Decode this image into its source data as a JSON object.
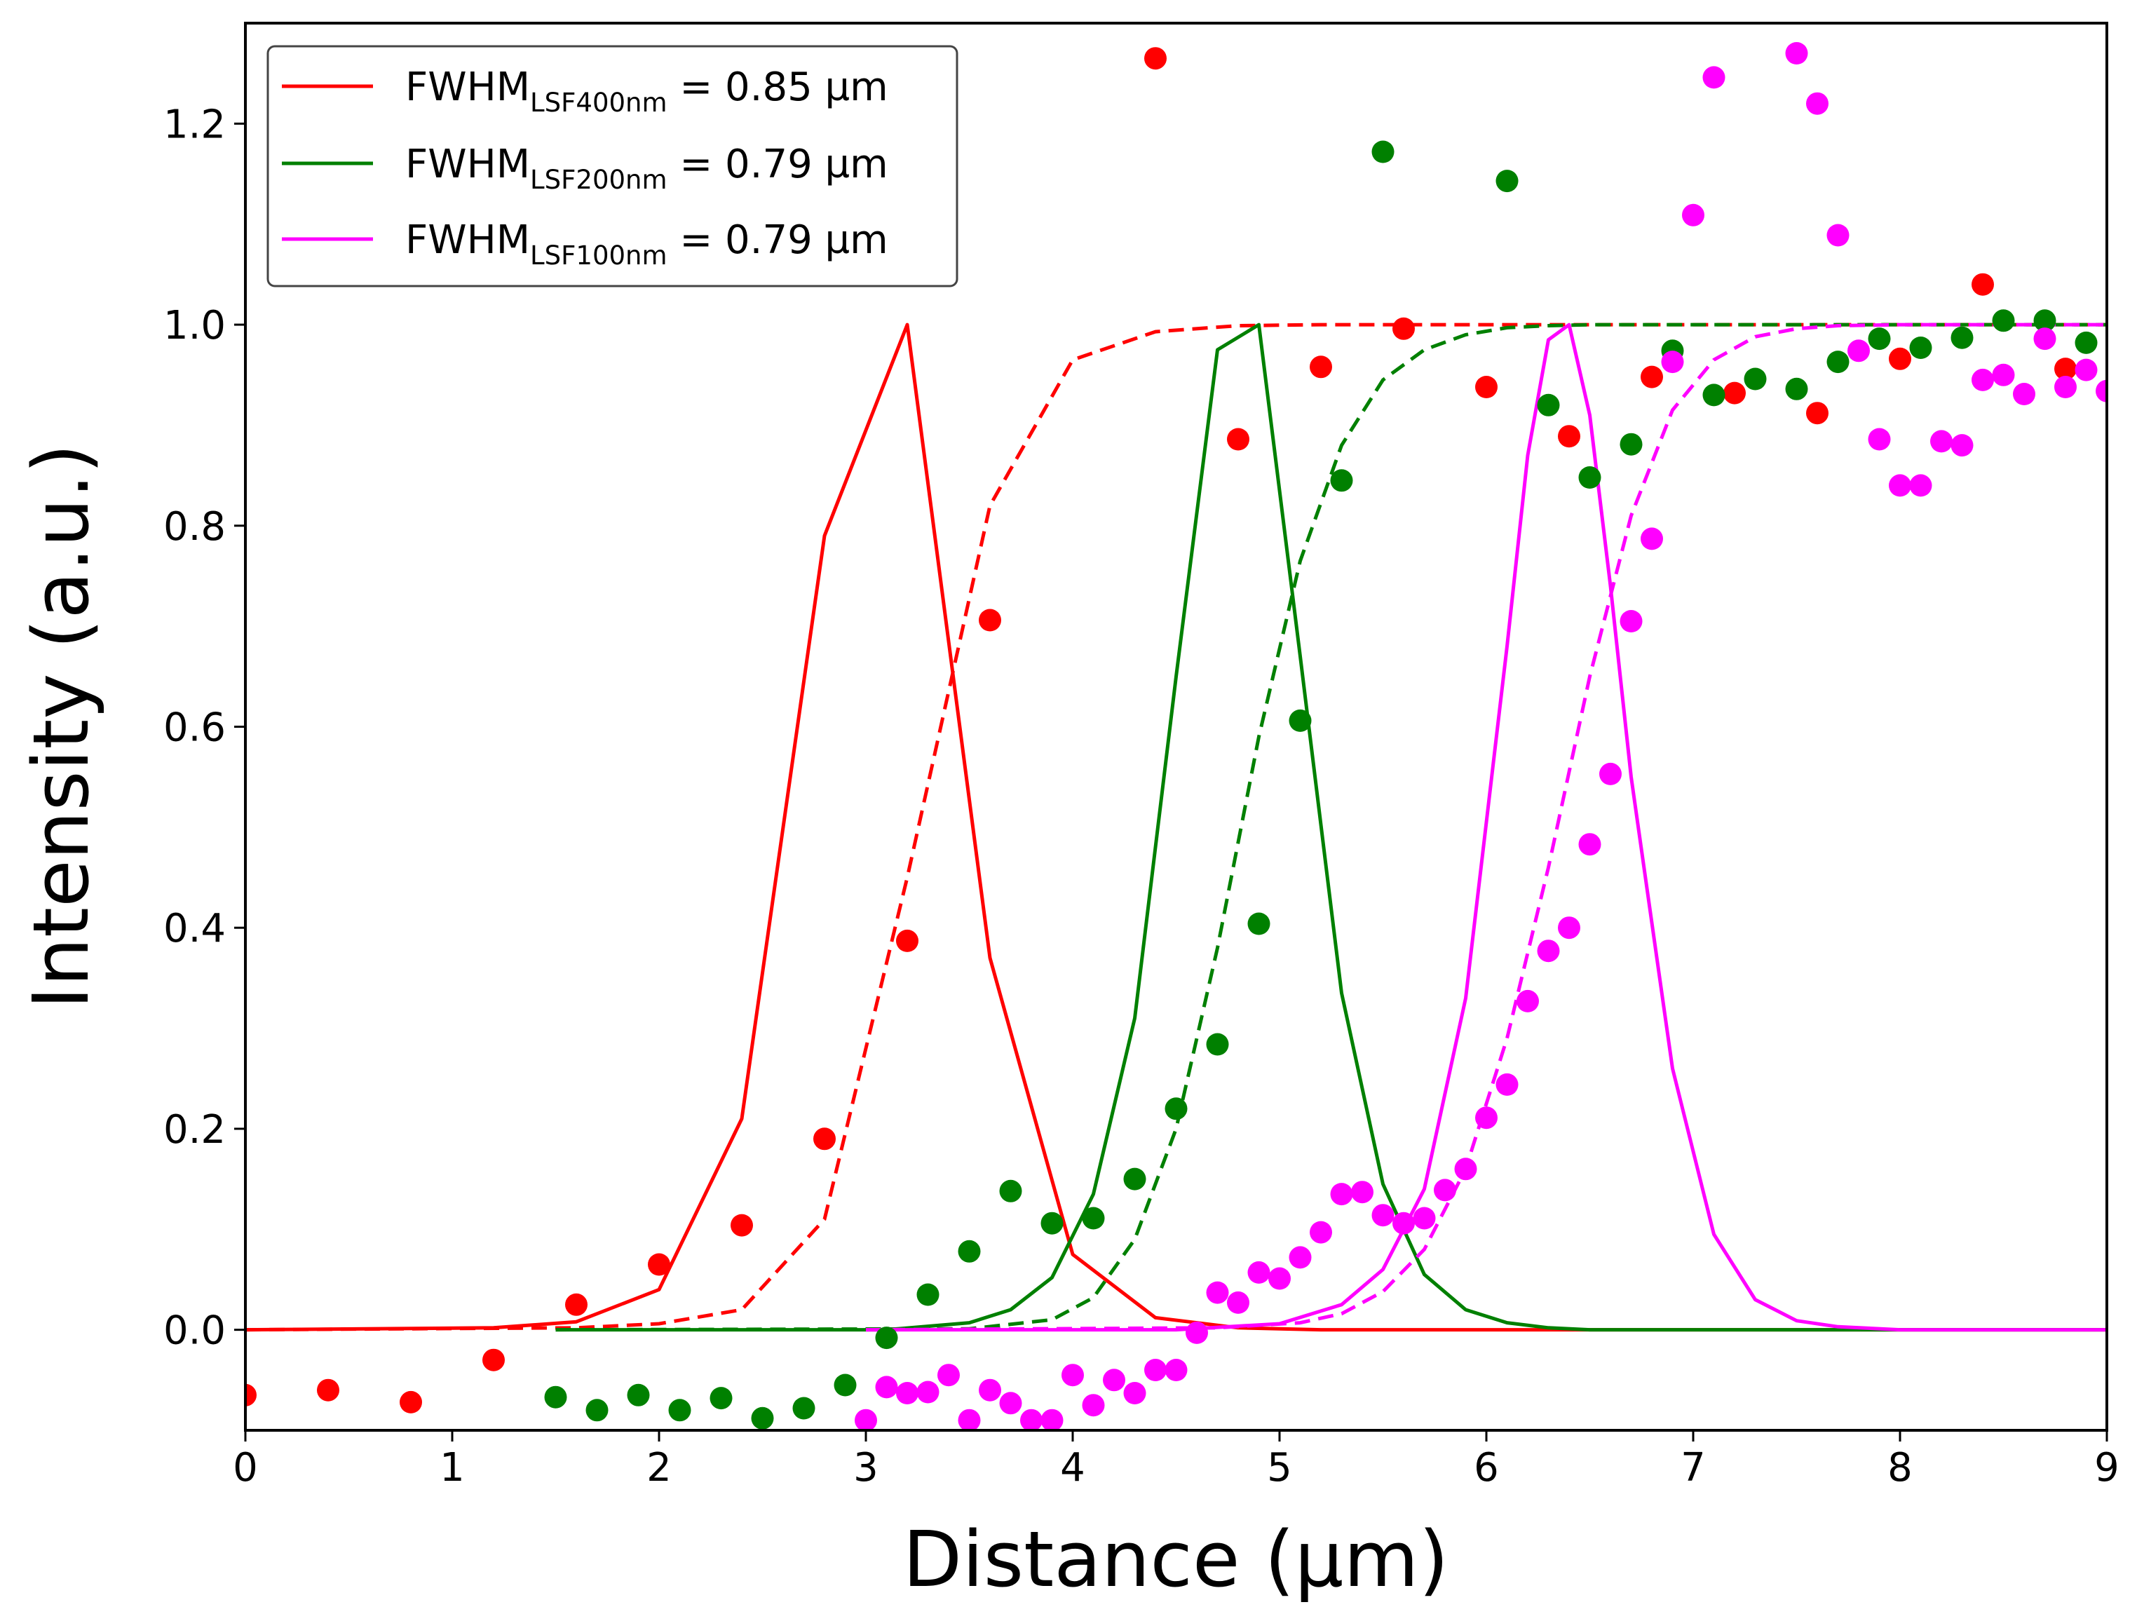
{
  "chart_data": {
    "type": "line",
    "title": "",
    "xlabel": "Distance (µm)",
    "ylabel": "Intensity (a.u.)",
    "xlim": [
      0,
      9
    ],
    "ylim": [
      -0.1,
      1.3
    ],
    "xticks": [
      0,
      1,
      2,
      3,
      4,
      5,
      6,
      7,
      8,
      9
    ],
    "yticks": [
      0.0,
      0.2,
      0.4,
      0.6,
      0.8,
      1.0,
      1.2
    ],
    "ytick_labels": [
      "0.0",
      "0.2",
      "0.4",
      "0.6",
      "0.8",
      "1.0",
      "1.2"
    ],
    "grid": false,
    "legend_position": "top-left",
    "legend": [
      {
        "main": "FWHM",
        "sub": "LSF400nm",
        "rest": " = 0.85 µm",
        "color": "#ff0000"
      },
      {
        "main": "FWHM",
        "sub": "LSF200nm",
        "rest": " = 0.79 µm",
        "color": "#008000"
      },
      {
        "main": "FWHM",
        "sub": "LSF100nm",
        "rest": " = 0.79 µm",
        "color": "#ff00ff"
      }
    ],
    "series": [
      {
        "name": "400nm",
        "color": "#ff0000",
        "lsf": {
          "x": [
            0,
            1.2,
            1.6,
            2.0,
            2.4,
            2.8,
            3.2,
            3.6,
            4.0,
            4.4,
            4.8,
            5.2,
            5.6,
            6.0,
            6.4,
            6.8,
            7.2,
            7.6,
            8.0,
            8.4,
            8.8,
            9.0
          ],
          "y": [
            0,
            0.002,
            0.008,
            0.04,
            0.21,
            0.79,
            1.0,
            0.37,
            0.075,
            0.012,
            0.002,
            0,
            0,
            0,
            0,
            0,
            0,
            0,
            0,
            0,
            0,
            0
          ]
        },
        "esf": {
          "x": [
            0,
            1.6,
            2.0,
            2.4,
            2.8,
            3.2,
            3.6,
            4.0,
            4.4,
            4.8,
            5.2,
            5.6,
            6.0,
            6.4,
            6.8,
            7.2,
            7.6,
            8.0,
            8.4,
            8.8,
            9.0
          ],
          "y": [
            0,
            0.002,
            0.006,
            0.02,
            0.11,
            0.45,
            0.82,
            0.965,
            0.993,
            0.999,
            1.0,
            1.0,
            1.0,
            1.0,
            1.0,
            1.0,
            1.0,
            1.0,
            1.0,
            1.0,
            1.0
          ]
        },
        "points": {
          "x": [
            0.0,
            0.4,
            0.8,
            1.2,
            1.6,
            2.0,
            2.4,
            2.8,
            3.2,
            3.6,
            4.4,
            4.8,
            5.2,
            5.6,
            6.0,
            6.4,
            6.8,
            7.2,
            7.6,
            8.0,
            8.4,
            8.8
          ],
          "y": [
            -0.065,
            -0.06,
            -0.072,
            -0.03,
            0.025,
            0.065,
            0.104,
            0.19,
            0.387,
            0.706,
            1.265,
            0.886,
            0.958,
            0.996,
            0.938,
            0.889,
            0.948,
            0.932,
            0.912,
            0.966,
            1.04,
            0.956
          ]
        }
      },
      {
        "name": "200nm",
        "color": "#008000",
        "lsf": {
          "x": [
            1.5,
            3.1,
            3.5,
            3.7,
            3.9,
            4.1,
            4.3,
            4.5,
            4.7,
            4.9,
            5.1,
            5.3,
            5.5,
            5.7,
            5.9,
            6.1,
            6.3,
            6.5,
            7.0,
            8.0,
            9.0
          ],
          "y": [
            0,
            0.0,
            0.007,
            0.02,
            0.052,
            0.135,
            0.31,
            0.65,
            0.975,
            1.0,
            0.67,
            0.335,
            0.145,
            0.055,
            0.02,
            0.007,
            0.002,
            0.0,
            0,
            0,
            0
          ]
        },
        "esf": {
          "x": [
            1.5,
            3.5,
            3.9,
            4.1,
            4.3,
            4.5,
            4.7,
            4.9,
            5.1,
            5.3,
            5.5,
            5.7,
            5.9,
            6.1,
            6.3,
            6.5,
            7.0,
            8.0,
            9.0
          ],
          "y": [
            0,
            0.001,
            0.01,
            0.032,
            0.09,
            0.2,
            0.38,
            0.59,
            0.765,
            0.88,
            0.945,
            0.975,
            0.99,
            0.997,
            0.999,
            1.0,
            1.0,
            1.0,
            1.0
          ]
        },
        "points": {
          "x": [
            1.5,
            1.7,
            1.9,
            2.1,
            2.3,
            2.5,
            2.7,
            2.9,
            3.1,
            3.3,
            3.5,
            3.7,
            3.9,
            4.1,
            4.3,
            4.5,
            4.7,
            4.9,
            5.1,
            5.3,
            5.5,
            6.1,
            6.3,
            6.5,
            6.7,
            6.9,
            7.1,
            7.3,
            7.5,
            7.7,
            7.9,
            8.1,
            8.3,
            8.5,
            8.7,
            8.9
          ],
          "y": [
            -0.067,
            -0.08,
            -0.065,
            -0.08,
            -0.068,
            -0.088,
            -0.078,
            -0.055,
            -0.008,
            0.035,
            0.078,
            0.138,
            0.106,
            0.111,
            0.15,
            0.22,
            0.284,
            0.404,
            0.606,
            0.845,
            1.172,
            1.143,
            0.92,
            0.848,
            0.881,
            0.974,
            0.93,
            0.946,
            0.936,
            0.963,
            0.986,
            0.977,
            0.987,
            1.004,
            1.004,
            0.982
          ]
        }
      },
      {
        "name": "100nm",
        "color": "#ff00ff",
        "lsf": {
          "x": [
            3.0,
            4.5,
            5.0,
            5.3,
            5.5,
            5.7,
            5.9,
            6.1,
            6.2,
            6.3,
            6.4,
            6.5,
            6.6,
            6.7,
            6.9,
            7.1,
            7.3,
            7.5,
            7.7,
            8.0,
            8.5,
            9.0
          ],
          "y": [
            0,
            0.0,
            0.006,
            0.025,
            0.06,
            0.14,
            0.33,
            0.68,
            0.87,
            0.985,
            1.0,
            0.91,
            0.74,
            0.55,
            0.26,
            0.095,
            0.03,
            0.009,
            0.003,
            0.0,
            0,
            0
          ]
        },
        "esf": {
          "x": [
            3.0,
            4.7,
            5.1,
            5.3,
            5.5,
            5.7,
            5.9,
            6.1,
            6.3,
            6.5,
            6.7,
            6.9,
            7.1,
            7.3,
            7.5,
            7.7,
            8.0,
            8.5,
            9.0
          ],
          "y": [
            0,
            0.002,
            0.007,
            0.016,
            0.038,
            0.08,
            0.16,
            0.29,
            0.46,
            0.65,
            0.81,
            0.915,
            0.965,
            0.988,
            0.996,
            0.999,
            1.0,
            1.0,
            1.0
          ]
        },
        "points": {
          "x": [
            3.0,
            3.1,
            3.2,
            3.3,
            3.4,
            3.5,
            3.6,
            3.7,
            3.8,
            3.9,
            4.0,
            4.1,
            4.2,
            4.3,
            4.4,
            4.5,
            4.6,
            4.7,
            4.8,
            4.9,
            5.0,
            5.1,
            5.2,
            5.3,
            5.4,
            5.5,
            5.6,
            5.7,
            5.8,
            5.9,
            6.0,
            6.1,
            6.2,
            6.3,
            6.4,
            6.5,
            6.6,
            6.7,
            6.8,
            6.9,
            7.0,
            7.1,
            7.5,
            7.6,
            7.7,
            7.8,
            7.9,
            8.0,
            8.1,
            8.2,
            8.3,
            8.4,
            8.5,
            8.6,
            8.7,
            8.8,
            8.9,
            9.0
          ],
          "y": [
            -0.09,
            -0.057,
            -0.063,
            -0.062,
            -0.045,
            -0.09,
            -0.06,
            -0.073,
            -0.09,
            -0.09,
            -0.045,
            -0.075,
            -0.05,
            -0.063,
            -0.04,
            -0.04,
            -0.003,
            0.037,
            0.027,
            0.057,
            0.051,
            0.072,
            0.097,
            0.135,
            0.137,
            0.114,
            0.106,
            0.111,
            0.139,
            0.16,
            0.211,
            0.244,
            0.327,
            0.377,
            0.4,
            0.483,
            0.553,
            0.705,
            0.787,
            0.963,
            1.109,
            1.246,
            1.27,
            1.22,
            1.089,
            0.974,
            0.886,
            0.84,
            0.84,
            0.884,
            0.88,
            0.945,
            0.95,
            0.931,
            0.986,
            0.938,
            0.955,
            0.934
          ]
        }
      }
    ]
  }
}
